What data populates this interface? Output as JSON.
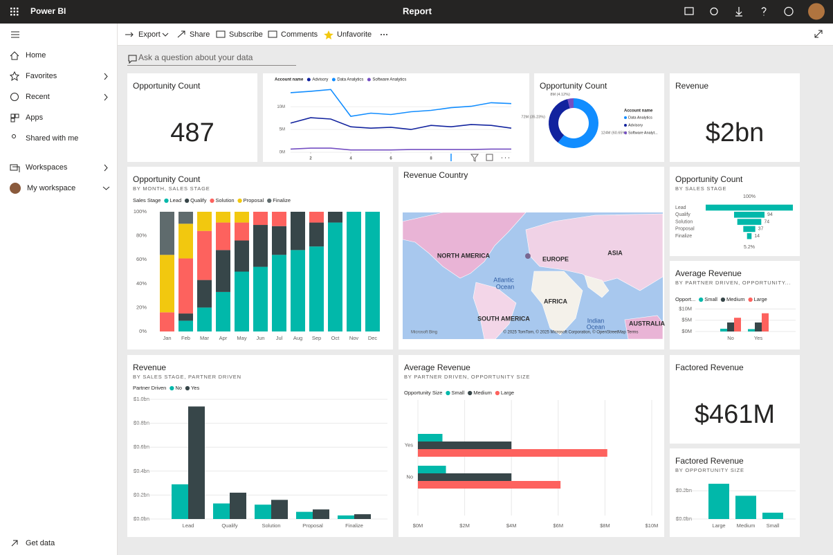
{
  "app": {
    "name": "Power BI",
    "title": "Report"
  },
  "nav": {
    "items": [
      "Home",
      "Favorites",
      "Recent",
      "Apps",
      "Shared with me",
      "Workspaces",
      "My workspace"
    ],
    "footer": "Get data"
  },
  "toolbar": {
    "actions": [
      "Export",
      "Share",
      "Subscribe",
      "Comments",
      "Unfavorite"
    ]
  },
  "qna": {
    "placeholder": "Ask a question about your data"
  },
  "tiles": [
    {
      "type": "card",
      "title": "Opportunity Count",
      "value": "487"
    },
    {
      "type": "line",
      "legend_title": "Account name",
      "x": [
        1,
        2,
        3,
        4,
        5,
        6,
        7,
        8,
        9,
        10,
        11,
        12
      ],
      "xlim": [
        1,
        12
      ],
      "xticks": [
        2,
        4,
        6,
        8
      ],
      "ylim": [
        0,
        14
      ],
      "yticks": [
        {
          "value": 0,
          "label": "0M"
        },
        {
          "value": 5,
          "label": "5M"
        },
        {
          "value": 10,
          "label": "10M"
        }
      ],
      "grid": true,
      "series": [
        {
          "name": "Advisory",
          "color": "#12239e",
          "values": [
            6.4,
            7.6,
            7.3,
            5.6,
            5.3,
            5.5,
            5.0,
            5.9,
            5.6,
            6.1,
            5.9,
            5.3
          ]
        },
        {
          "name": "Data Analytics",
          "color": "#118dff",
          "values": [
            13.1,
            13.4,
            13.8,
            7.9,
            8.6,
            8.3,
            8.9,
            9.2,
            9.8,
            10.1,
            10.9,
            10.7
          ]
        },
        {
          "name": "Software Analytics",
          "color": "#744ec2",
          "values": [
            0.7,
            0.9,
            0.9,
            0.5,
            0.5,
            0.5,
            0.6,
            0.6,
            0.6,
            0.6,
            0.7,
            0.7
          ]
        }
      ]
    },
    {
      "type": "donut",
      "title": "Opportunity Count",
      "legend_title": "Account name",
      "categories": [
        "Data Analytics",
        "Advisory",
        "Software Analyt..."
      ],
      "values": [
        124,
        72,
        8
      ],
      "value_labels": [
        "124M (60.65%)",
        "72M (35.23%)",
        "8M (4.12%)"
      ],
      "colors": [
        "#118dff",
        "#12239e",
        "#744ec2"
      ]
    },
    {
      "type": "card",
      "title": "Revenue",
      "value": "$2bn"
    },
    {
      "type": "column",
      "stacked": true,
      "title": "Opportunity Count",
      "subtitle": "BY MONTH, SALES STAGE",
      "legend_title": "Sales Stage",
      "categories": [
        "Jan",
        "Feb",
        "Mar",
        "Apr",
        "May",
        "Jun",
        "Jul",
        "Aug",
        "Sep",
        "Oct",
        "Nov",
        "Dec"
      ],
      "ylim": [
        0,
        100
      ],
      "yticks": [
        {
          "value": 0,
          "label": "0%"
        },
        {
          "value": 20,
          "label": "20%"
        },
        {
          "value": 40,
          "label": "40%"
        },
        {
          "value": 60,
          "label": "60%"
        },
        {
          "value": 80,
          "label": "80%"
        },
        {
          "value": 100,
          "label": "100%"
        }
      ],
      "grid": false,
      "series": [
        {
          "name": "Lead",
          "color": "#01b8aa",
          "values": [
            0,
            9,
            20,
            33,
            50,
            54,
            64,
            68,
            71,
            91,
            100,
            100
          ]
        },
        {
          "name": "Qualify",
          "color": "#374649",
          "values": [
            0,
            6,
            23,
            35,
            26,
            35,
            24,
            32,
            20,
            9,
            0,
            0
          ]
        },
        {
          "name": "Solution",
          "color": "#fd625e",
          "values": [
            16,
            46,
            41,
            23,
            15,
            11,
            12,
            0,
            9,
            0,
            0,
            0
          ]
        },
        {
          "name": "Proposal",
          "color": "#f2c80f",
          "values": [
            48,
            29,
            16,
            9,
            9,
            0,
            0,
            0,
            0,
            0,
            0,
            0
          ]
        },
        {
          "name": "Finalize",
          "color": "#5f6b6d",
          "values": [
            36,
            10,
            0,
            0,
            0,
            0,
            0,
            0,
            0,
            0,
            0,
            0
          ]
        }
      ]
    },
    {
      "type": "map",
      "title": "Revenue Country",
      "labels": [
        "NORTH AMERICA",
        "EUROPE",
        "ASIA",
        "Atlantic",
        "Ocean",
        "AFRICA",
        "SOUTH AMERICA",
        "Indian",
        "Ocean",
        "AUSTRALIA"
      ],
      "logo": "Microsoft Bing",
      "attribution": "© 2025 TomTom, © 2025 Microsoft Corporation, © OpenStreetMap  Terms"
    },
    {
      "type": "funnel",
      "title": "Opportunity Count",
      "subtitle": "BY SALES STAGE",
      "color": "#01b8aa",
      "categories": [
        "Lead",
        "Qualify",
        "Solution",
        "Proposal",
        "Finalize"
      ],
      "values": [
        269,
        94,
        74,
        37,
        14
      ],
      "top_label": "100%",
      "bottom_label": "5.2%"
    },
    {
      "type": "column",
      "title": "Average Revenue",
      "subtitle": "BY PARTNER DRIVEN, OPPORTUNITY...",
      "legend_title": "Opport...",
      "categories": [
        "No",
        "Yes"
      ],
      "ylim": [
        0,
        12
      ],
      "yticks": [
        {
          "value": 0,
          "label": "$0M"
        },
        {
          "value": 5,
          "label": "$5M"
        },
        {
          "value": 10,
          "label": "$10M"
        }
      ],
      "grid": true,
      "series": [
        {
          "name": "Small",
          "color": "#01b8aa",
          "values": [
            1.2,
            1.05
          ]
        },
        {
          "name": "Medium",
          "color": "#374649",
          "values": [
            4.0,
            4.0
          ]
        },
        {
          "name": "Large",
          "color": "#fd625e",
          "values": [
            6.1,
            8.1
          ]
        }
      ]
    },
    {
      "type": "column",
      "title": "Revenue",
      "subtitle": "BY SALES STAGE, PARTNER DRIVEN",
      "legend_title": "Partner Driven",
      "categories": [
        "Lead",
        "Qualify",
        "Solution",
        "Proposal",
        "Finalize"
      ],
      "ylim": [
        0,
        1.0
      ],
      "yticks": [
        {
          "value": 0,
          "label": "$0.0bn"
        },
        {
          "value": 0.2,
          "label": "$0.2bn"
        },
        {
          "value": 0.4,
          "label": "$0.4bn"
        },
        {
          "value": 0.6,
          "label": "$0.6bn"
        },
        {
          "value": 0.8,
          "label": "$0.8bn"
        },
        {
          "value": 1.0,
          "label": "$1.0bn"
        }
      ],
      "grid": true,
      "series": [
        {
          "name": "No",
          "color": "#01b8aa",
          "values": [
            0.29,
            0.13,
            0.12,
            0.06,
            0.03
          ]
        },
        {
          "name": "Yes",
          "color": "#374649",
          "values": [
            0.94,
            0.22,
            0.16,
            0.08,
            0.04
          ]
        }
      ]
    },
    {
      "type": "bar",
      "title": "Average Revenue",
      "subtitle": "BY PARTNER DRIVEN, OPPORTUNITY SIZE",
      "legend_title": "Opportunity Size",
      "categories": [
        "Yes",
        "No"
      ],
      "xlim": [
        0,
        10
      ],
      "xticks": [
        {
          "value": 0,
          "label": "$0M"
        },
        {
          "value": 2,
          "label": "$2M"
        },
        {
          "value": 4,
          "label": "$4M"
        },
        {
          "value": 6,
          "label": "$6M"
        },
        {
          "value": 8,
          "label": "$8M"
        },
        {
          "value": 10,
          "label": "$10M"
        }
      ],
      "grid": true,
      "series": [
        {
          "name": "Small",
          "color": "#01b8aa",
          "values": [
            1.05,
            1.2
          ]
        },
        {
          "name": "Medium",
          "color": "#374649",
          "values": [
            4.0,
            4.0
          ]
        },
        {
          "name": "Large",
          "color": "#fd625e",
          "values": [
            8.1,
            6.1
          ]
        }
      ]
    },
    {
      "type": "card",
      "title": "Factored Revenue",
      "value": "$461M"
    },
    {
      "type": "column",
      "title": "Factored Revenue",
      "subtitle": "BY OPPORTUNITY SIZE",
      "color": "#01b8aa",
      "categories": [
        "Large",
        "Medium",
        "Small"
      ],
      "values": [
        0.25,
        0.165,
        0.045
      ],
      "ylim": [
        0,
        0.27
      ],
      "yticks": [
        {
          "value": 0,
          "label": "$0.0bn"
        },
        {
          "value": 0.2,
          "label": "$0.2bn"
        }
      ],
      "grid": true
    }
  ]
}
